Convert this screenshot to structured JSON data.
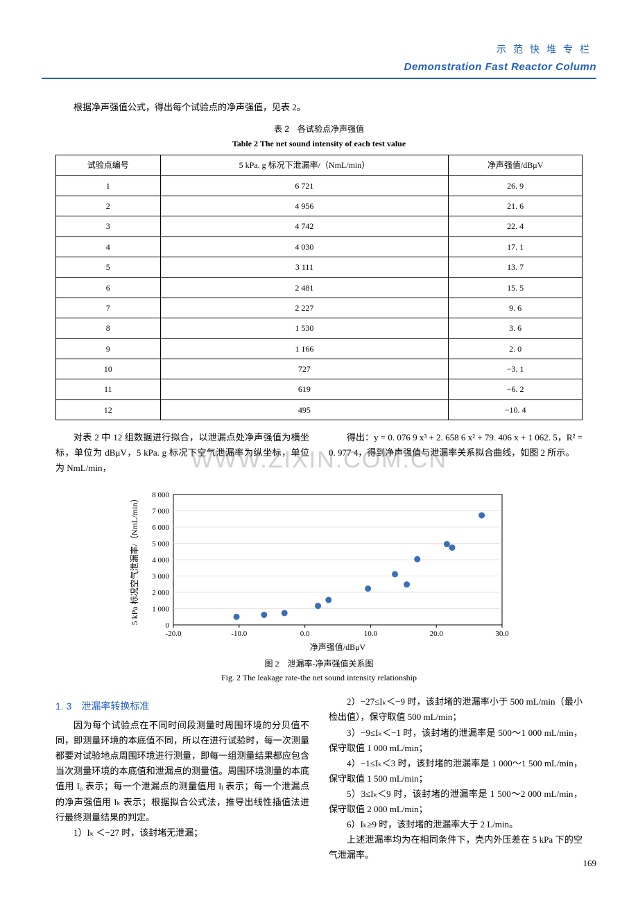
{
  "header": {
    "cn": "示范快堆专栏",
    "en": "Demonstration Fast Reactor Column"
  },
  "intro": "根据净声强值公式，得出每个试验点的净声强值，见表 2。",
  "table": {
    "caption_cn": "表 2　各试验点净声强值",
    "caption_en": "Table 2   The net sound intensity of each test value",
    "columns": [
      "试验点编号",
      "5 kPa. g 标况下泄漏率/（NmL/min）",
      "净声强值/dBμV"
    ],
    "rows": [
      [
        "1",
        "6 721",
        "26. 9"
      ],
      [
        "2",
        "4 956",
        "21. 6"
      ],
      [
        "3",
        "4 742",
        "22. 4"
      ],
      [
        "4",
        "4 030",
        "17. 1"
      ],
      [
        "5",
        "3 111",
        "13. 7"
      ],
      [
        "6",
        "2 481",
        "15. 5"
      ],
      [
        "7",
        "2 227",
        "9. 6"
      ],
      [
        "8",
        "1 530",
        "3. 6"
      ],
      [
        "9",
        "1 166",
        "2. 0"
      ],
      [
        "10",
        "727",
        "−3. 1"
      ],
      [
        "11",
        "619",
        "−6. 2"
      ],
      [
        "12",
        "495",
        "−10. 4"
      ]
    ]
  },
  "fit_text_left": "对表 2 中 12 组数据进行拟合，以泄漏点处净声强值为横坐标，单位为 dBμV，5 kPa. g 标况下空气泄漏率为纵坐标，单位为 NmL/min，",
  "fit_text_right": "得出：y = 0. 076 9 x³ + 2. 658 6 x² + 79. 406 x + 1 062. 5，R² = 0. 977 4，得到净声强值与泄漏率关系拟合曲线，如图 2 所示。",
  "chart": {
    "type": "scatter",
    "xlabel": "净声强值/dBμV",
    "ylabel": "5 kPa 标况空气泄漏率/（NmL/min）",
    "xlim": [
      -20,
      30
    ],
    "ylim": [
      0,
      8000
    ],
    "xtick_step": 10,
    "ytick_step": 1000,
    "xtick_labels": [
      "-20.0",
      "-10.0",
      "0.0",
      "10.0",
      "20.0",
      "30.0"
    ],
    "ytick_labels": [
      "0",
      "1 000",
      "2 000",
      "3 000",
      "4 000",
      "5 000",
      "6 000",
      "7 000",
      "8 000"
    ],
    "points": [
      {
        "x": 26.9,
        "y": 6721
      },
      {
        "x": 21.6,
        "y": 4956
      },
      {
        "x": 22.4,
        "y": 4742
      },
      {
        "x": 17.1,
        "y": 4030
      },
      {
        "x": 13.7,
        "y": 3111
      },
      {
        "x": 15.5,
        "y": 2481
      },
      {
        "x": 9.6,
        "y": 2227
      },
      {
        "x": 3.6,
        "y": 1530
      },
      {
        "x": 2.0,
        "y": 1166
      },
      {
        "x": -3.1,
        "y": 727
      },
      {
        "x": -6.2,
        "y": 619
      },
      {
        "x": -10.4,
        "y": 495
      }
    ],
    "marker_color": "#3a6fb7",
    "marker_radius": 4.5,
    "axis_color": "#000000",
    "grid_color": "#cfcfcf",
    "background_color": "#ffffff",
    "axis_fontsize": 11,
    "label_fontsize": 12
  },
  "fig": {
    "caption_cn": "图 2　泄漏率-净声强值关系图",
    "caption_en": "Fig. 2   The leakage rate-the net sound intensity relationship"
  },
  "section": {
    "num": "1. 3",
    "title": "泄漏率转换标准"
  },
  "body_left": "因为每个试验点在不同时间段测量时周围环境的分贝值不同，即测量环境的本底值不同，所以在进行试验时，每一次测量都要对试验地点周围环境进行测量，即每一组测量结果都应包含当次测量环境的本底值和泄漏点的测量值。周围环境测量的本底值用 I₀ 表示；每一个泄漏点的测量值用 Iⱼ 表示；每一个泄漏点的净声强值用 Iₖ 表示；根据拟合公式法，推导出线性插值法进行最终测量结果的判定。",
  "rule1": "1）Iₖ ＜−27 时，该封堵无泄漏；",
  "rule2": "2）−27≤Iₖ＜−9 时，该封堵的泄漏率小于 500 mL/min（最小检出值），保守取值 500 mL/min；",
  "rule3": "3）−9≤Iₖ＜−1 时，该封堵的泄漏率是 500～1 000 mL/min，保守取值 1 000 mL/min；",
  "rule4": "4）−1≤Iₖ＜3 时，该封堵的泄漏率是 1 000～1 500 mL/min，保守取值 1 500 mL/min；",
  "rule5": "5）3≤Iₖ＜9 时，该封堵的泄漏率是 1 500～2 000 mL/min，保守取值 2 000 mL/min；",
  "rule6": "6）Iₖ≥9 时，该封堵的泄漏率大于 2 L/min。",
  "body_tail": "上述泄漏率均为在相同条件下，壳内外压差在 5 kPa 下的空气泄漏率。",
  "watermark": "WWW.ZIXIN.COM.CN",
  "page_number": "169"
}
